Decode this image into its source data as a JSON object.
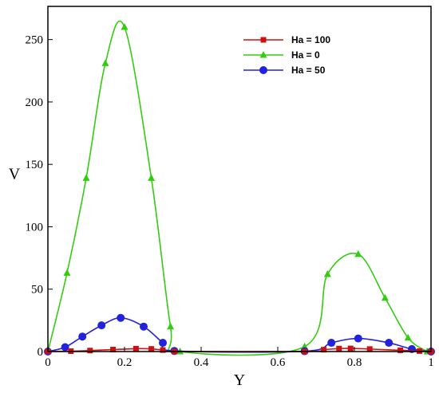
{
  "chart_data": {
    "type": "line",
    "xlabel": "Y",
    "ylabel": "V",
    "xlim": [
      0,
      1
    ],
    "ylim": [
      0,
      260
    ],
    "xticks": [
      0,
      0.2,
      0.4,
      0.6,
      0.8,
      1
    ],
    "xtick_labels": [
      "0",
      "0.2",
      "0.4",
      "0.6",
      "0.8",
      "1"
    ],
    "yticks": [
      0,
      50,
      100,
      150,
      200,
      250
    ],
    "ytick_labels": [
      "0",
      "50",
      "100",
      "150",
      "200",
      "250"
    ],
    "grid": false,
    "legend_position": "top-right",
    "series": [
      {
        "name": "Ha = 100",
        "color": "#cc1111",
        "marker": "square",
        "x": [
          0,
          0.06,
          0.11,
          0.17,
          0.23,
          0.27,
          0.3,
          0.33,
          0.67,
          0.72,
          0.76,
          0.79,
          0.84,
          0.92,
          0.97,
          1.0
        ],
        "y": [
          0,
          0.3,
          0.8,
          1.6,
          2.3,
          2.1,
          1.2,
          0,
          0,
          1.5,
          2.4,
          2.5,
          2.0,
          1.0,
          0.4,
          0
        ]
      },
      {
        "name": "Ha = 0",
        "color": "#33cc11",
        "marker": "triangle",
        "x": [
          0,
          0.05,
          0.1,
          0.15,
          0.2,
          0.27,
          0.32,
          0.345,
          0.67,
          0.73,
          0.81,
          0.88,
          0.94,
          0.99
        ],
        "y": [
          0,
          63,
          139,
          231,
          260,
          139,
          20,
          0,
          4,
          62,
          78,
          43,
          11,
          0
        ]
      },
      {
        "name": "Ha = 50",
        "color": "#2222dd",
        "marker": "circle",
        "x": [
          0,
          0.045,
          0.09,
          0.14,
          0.19,
          0.25,
          0.3,
          0.33,
          0.67,
          0.74,
          0.81,
          0.89,
          0.95,
          1.0
        ],
        "y": [
          0,
          3.5,
          12,
          21,
          27,
          20,
          7,
          0.5,
          0.3,
          7,
          10.5,
          7,
          2,
          0
        ]
      }
    ]
  }
}
